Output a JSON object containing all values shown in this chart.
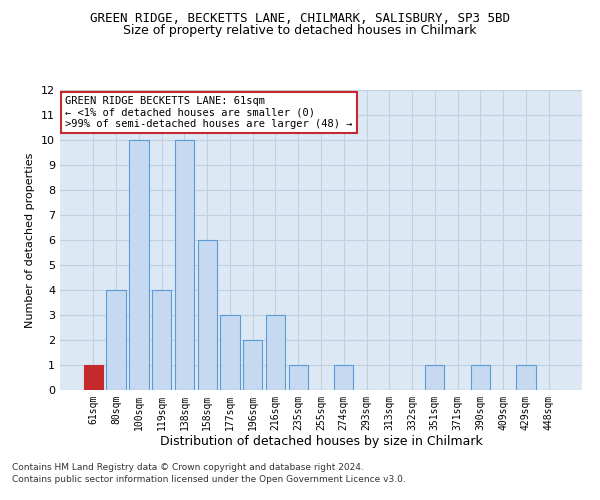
{
  "title1": "GREEN RIDGE, BECKETTS LANE, CHILMARK, SALISBURY, SP3 5BD",
  "title2": "Size of property relative to detached houses in Chilmark",
  "xlabel": "Distribution of detached houses by size in Chilmark",
  "ylabel": "Number of detached properties",
  "categories": [
    "61sqm",
    "80sqm",
    "100sqm",
    "119sqm",
    "138sqm",
    "158sqm",
    "177sqm",
    "196sqm",
    "216sqm",
    "235sqm",
    "255sqm",
    "274sqm",
    "293sqm",
    "313sqm",
    "332sqm",
    "351sqm",
    "371sqm",
    "390sqm",
    "409sqm",
    "429sqm",
    "448sqm"
  ],
  "values": [
    1,
    4,
    10,
    4,
    10,
    6,
    3,
    2,
    3,
    1,
    0,
    1,
    0,
    0,
    0,
    1,
    0,
    1,
    0,
    1,
    0
  ],
  "highlight_index": 0,
  "bar_color": "#c6d9f0",
  "highlight_bar_color": "#c6292c",
  "bar_edge_color": "#5b9bd5",
  "highlight_edge_color": "#c6292c",
  "grid_color": "#c0d0e0",
  "bg_color": "#dce9f5",
  "annotation_box_color": "#c6292c",
  "annotation_text": "GREEN RIDGE BECKETTS LANE: 61sqm\n← <1% of detached houses are smaller (0)\n>99% of semi-detached houses are larger (48) →",
  "footer1": "Contains HM Land Registry data © Crown copyright and database right 2024.",
  "footer2": "Contains public sector information licensed under the Open Government Licence v3.0.",
  "ylim": [
    0,
    12
  ],
  "yticks": [
    0,
    1,
    2,
    3,
    4,
    5,
    6,
    7,
    8,
    9,
    10,
    11,
    12
  ]
}
